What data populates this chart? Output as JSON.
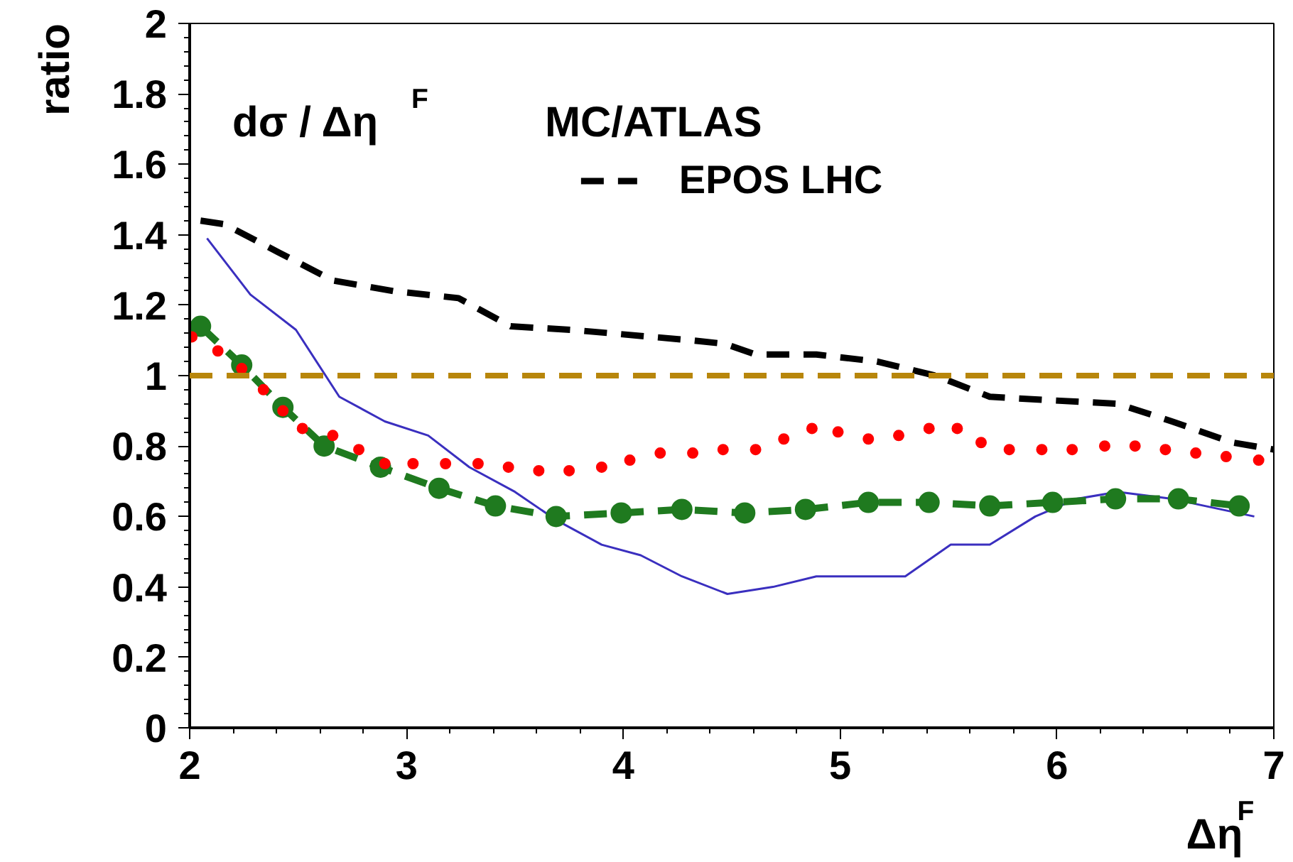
{
  "chart_data": {
    "type": "line",
    "xlabel": "Δη$^{F}$",
    "ylabel": "ratio",
    "annotations": [
      "dσ / Δη$^{F}$",
      "MC/ATLAS"
    ],
    "xlim": [
      2,
      7
    ],
    "xticks": [
      2,
      3,
      4,
      5,
      6,
      7
    ],
    "ylim": [
      0,
      2
    ],
    "yticks": [
      0,
      0.2,
      0.4,
      0.6,
      0.8,
      1,
      1.2,
      1.4,
      1.6,
      1.8,
      2
    ],
    "grid": false,
    "legend": "top",
    "ref_lines": [
      {
        "axis": "y",
        "value": 1,
        "color": "#b8860b",
        "line_style": "dashed"
      }
    ],
    "series": [
      {
        "name": "EPOS LHC",
        "color": "#000000",
        "line_style": "dashed",
        "marker": "none",
        "x": [
          2.05,
          2.16,
          2.41,
          2.66,
          2.94,
          3.24,
          3.48,
          3.76,
          4.32,
          4.47,
          4.61,
          4.89,
          5.17,
          5.44,
          5.69,
          5.97,
          6.28,
          6.53,
          6.81,
          7.0
        ],
        "values": [
          1.44,
          1.43,
          1.35,
          1.27,
          1.24,
          1.22,
          1.14,
          1.13,
          1.1,
          1.09,
          1.06,
          1.06,
          1.04,
          1.0,
          0.94,
          0.93,
          0.92,
          0.87,
          0.81,
          0.79
        ]
      },
      {
        "color": "#3a2fbf",
        "line_style": "solid",
        "marker": "none",
        "x": [
          2.08,
          2.28,
          2.49,
          2.69,
          2.9,
          3.1,
          3.29,
          3.5,
          3.69,
          3.9,
          4.08,
          4.27,
          4.48,
          4.69,
          4.89,
          5.3,
          5.51,
          5.69,
          5.9,
          6.09,
          6.28,
          6.53,
          6.91
        ],
        "values": [
          1.39,
          1.23,
          1.13,
          0.94,
          0.87,
          0.83,
          0.74,
          0.67,
          0.59,
          0.52,
          0.49,
          0.43,
          0.38,
          0.4,
          0.43,
          0.43,
          0.52,
          0.52,
          0.6,
          0.65,
          0.67,
          0.65,
          0.6
        ]
      },
      {
        "type": "scatter",
        "color": "#ff0000",
        "marker": "circle",
        "x": [
          2.01,
          2.13,
          2.24,
          2.34,
          2.43,
          2.52,
          2.66,
          2.78,
          2.9,
          3.03,
          3.18,
          3.33,
          3.47,
          3.61,
          3.75,
          3.9,
          4.03,
          4.17,
          4.32,
          4.46,
          4.61,
          4.74,
          4.87,
          4.99,
          5.13,
          5.27,
          5.41,
          5.54,
          5.65,
          5.78,
          5.93,
          6.07,
          6.22,
          6.36,
          6.5,
          6.64,
          6.78,
          6.93
        ],
        "values": [
          1.11,
          1.07,
          1.02,
          0.96,
          0.9,
          0.85,
          0.83,
          0.79,
          0.75,
          0.75,
          0.75,
          0.75,
          0.74,
          0.73,
          0.73,
          0.74,
          0.76,
          0.78,
          0.78,
          0.79,
          0.79,
          0.82,
          0.85,
          0.84,
          0.82,
          0.83,
          0.85,
          0.85,
          0.81,
          0.79,
          0.79,
          0.79,
          0.8,
          0.8,
          0.79,
          0.78,
          0.77,
          0.76
        ]
      },
      {
        "color": "#1f7a1f",
        "line_style": "dashed",
        "marker": "circle",
        "x": [
          2.05,
          2.24,
          2.43,
          2.62,
          2.88,
          3.15,
          3.41,
          3.69,
          3.99,
          4.27,
          4.56,
          4.84,
          5.13,
          5.41,
          5.69,
          5.98,
          6.27,
          6.56,
          6.84
        ],
        "values": [
          1.14,
          1.03,
          0.91,
          0.8,
          0.74,
          0.68,
          0.63,
          0.6,
          0.61,
          0.62,
          0.61,
          0.62,
          0.64,
          0.64,
          0.63,
          0.64,
          0.65,
          0.65,
          0.63
        ]
      }
    ]
  }
}
